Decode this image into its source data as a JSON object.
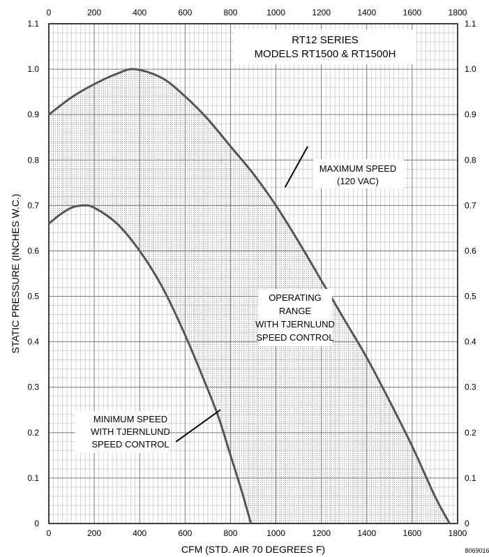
{
  "chart_data": {
    "type": "line",
    "title_lines": [
      "RT12 SERIES",
      "MODELS RT1500 & RT1500H"
    ],
    "xlabel": "CFM (STD. AIR 70 DEGREES F)",
    "ylabel": "STATIC PRESSURE (INCHES W.C.)",
    "xlim": [
      0,
      1800
    ],
    "ylim": [
      0,
      1.1
    ],
    "x_ticks": [
      0,
      200,
      400,
      600,
      800,
      1000,
      1200,
      1400,
      1600,
      1800
    ],
    "x_tick_labels": [
      "0",
      "200",
      "400",
      "600",
      "800",
      "1000",
      "1200",
      "1400",
      "1600",
      "1800"
    ],
    "y_ticks": [
      0,
      0.1,
      0.2,
      0.3,
      0.4,
      0.5,
      0.6,
      0.7,
      0.8,
      0.9,
      1.0,
      1.1
    ],
    "y_tick_labels": [
      "0",
      "0.1",
      "0.2",
      "0.3",
      "0.4",
      "0.5",
      "0.6",
      "0.7",
      "0.8",
      "0.9",
      "1.0",
      "1.1"
    ],
    "grid": true,
    "series": [
      {
        "key": "max",
        "x": [
          0,
          100,
          200,
          300,
          380,
          500,
          600,
          700,
          800,
          900,
          1000,
          1100,
          1200,
          1300,
          1400,
          1500,
          1600,
          1700,
          1765
        ],
        "y": [
          0.9,
          0.938,
          0.967,
          0.99,
          1.0,
          0.98,
          0.94,
          0.89,
          0.83,
          0.77,
          0.7,
          0.62,
          0.535,
          0.45,
          0.365,
          0.27,
          0.17,
          0.06,
          0.0
        ]
      },
      {
        "key": "min",
        "x": [
          0,
          50,
          100,
          150,
          200,
          300,
          400,
          500,
          600,
          700,
          750,
          800,
          850,
          890
        ],
        "y": [
          0.66,
          0.68,
          0.695,
          0.7,
          0.695,
          0.66,
          0.6,
          0.52,
          0.415,
          0.295,
          0.23,
          0.15,
          0.07,
          0.0
        ]
      }
    ],
    "annotations": [
      {
        "key": "max_speed",
        "lines": [
          "MAXIMUM SPEED",
          "(120 VAC)"
        ]
      },
      {
        "key": "operating",
        "lines": [
          "OPERATING",
          "RANGE",
          "WITH TJERNLUND",
          "SPEED CONTROL"
        ]
      },
      {
        "key": "min_speed",
        "lines": [
          "MINIMUM SPEED",
          "WITH TJERNLUND",
          "SPEED CONTROL"
        ]
      }
    ],
    "figure_code": "8069016",
    "colors": {
      "curve": "#555555",
      "grid_major": "#777777",
      "grid_minor": "#bbbbbb",
      "shading": "#888888"
    }
  }
}
